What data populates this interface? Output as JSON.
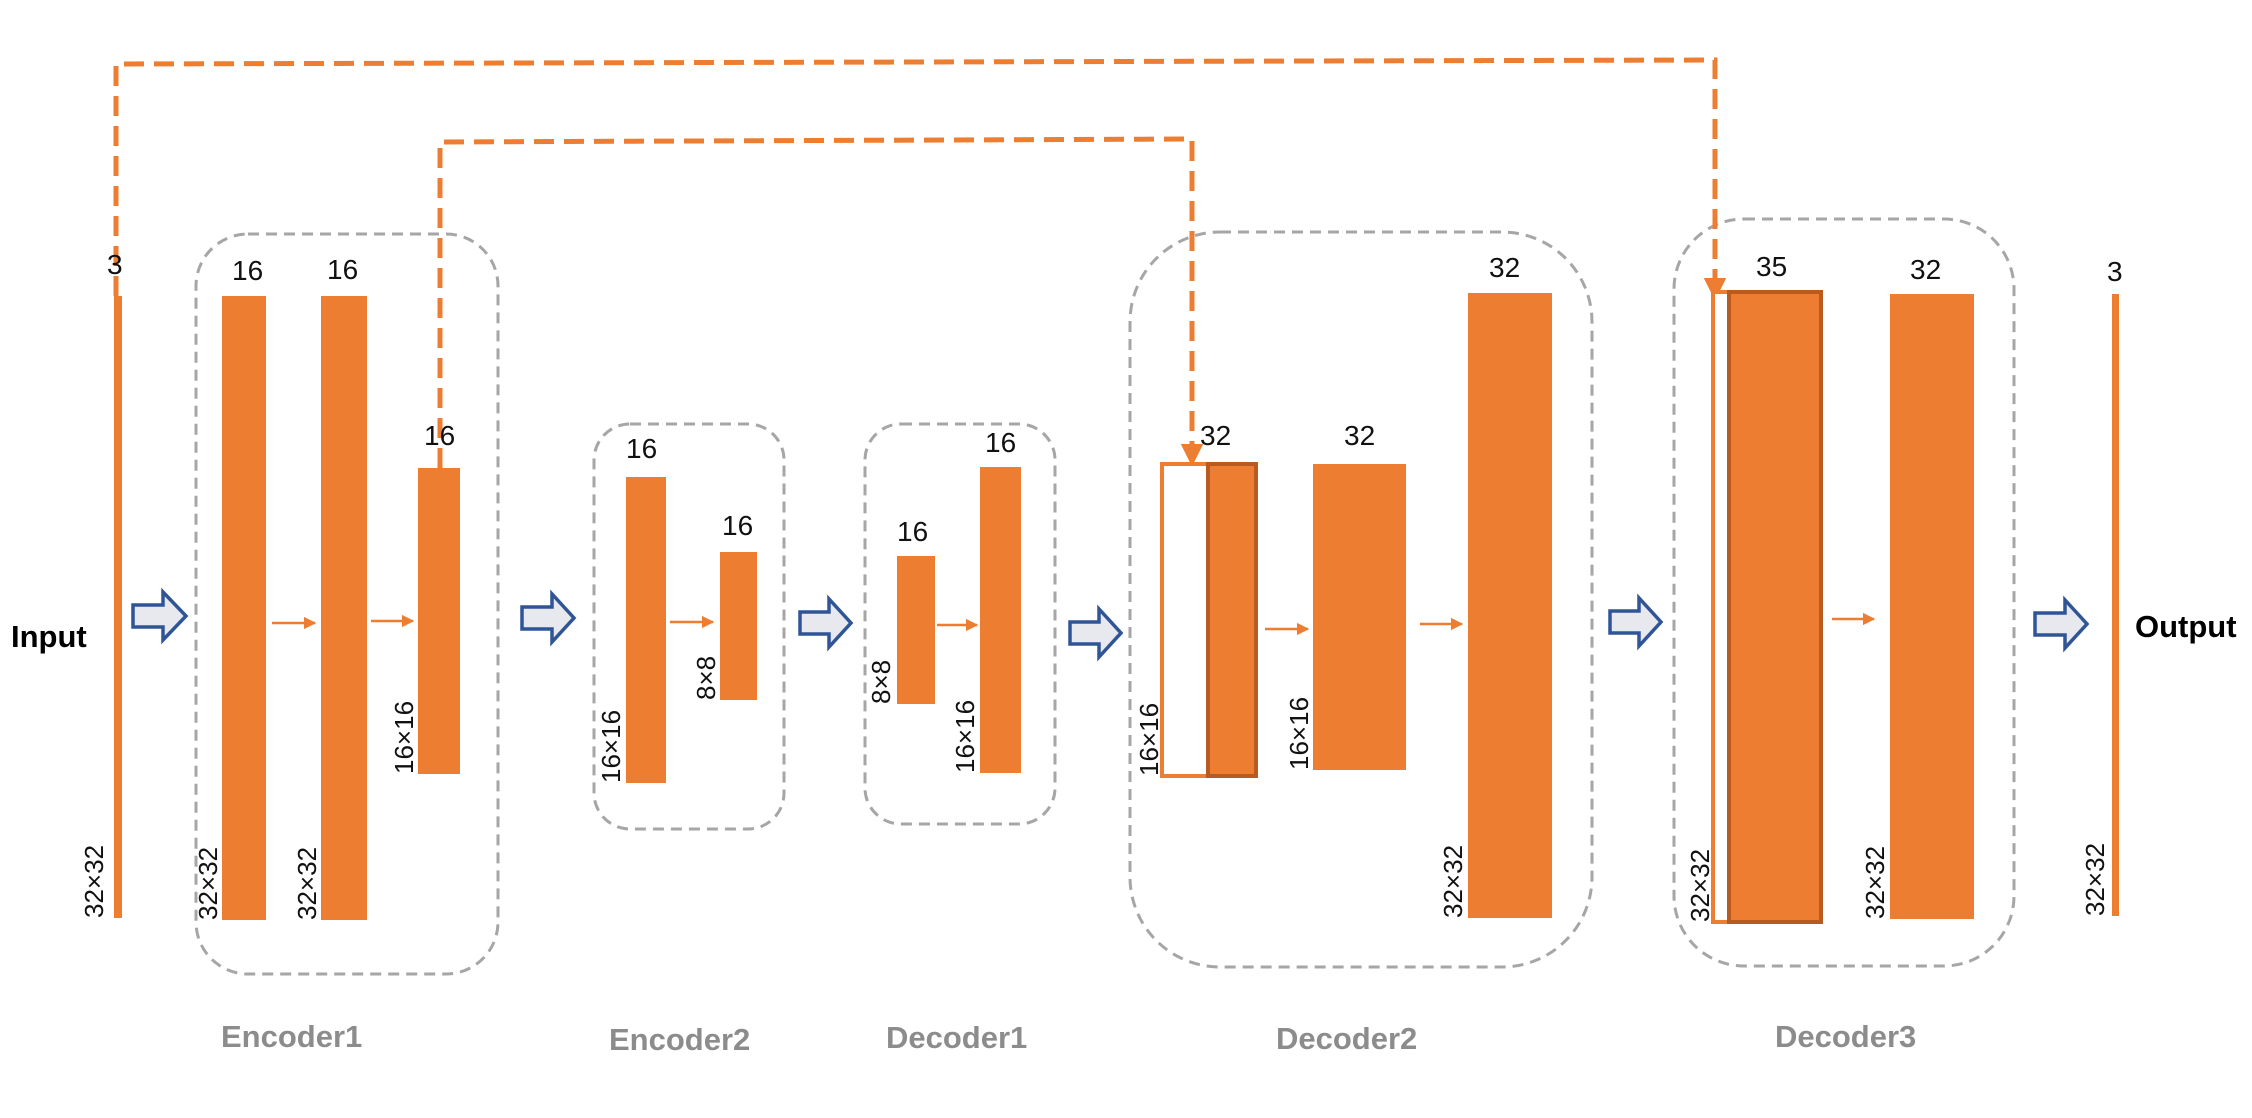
{
  "colors": {
    "feature_map": "#ed7d31",
    "feature_map_border": "#b85b20",
    "skip_connection": "#ed7d31",
    "group_border": "#a6a6a6",
    "flow_arrow_fill": "#e7e9ef",
    "flow_arrow_stroke": "#2f5597",
    "block_label": "#8c8c8c"
  },
  "input_label": "Input",
  "output_label": "Output",
  "input_map": {
    "channels": "3",
    "size": "32×32"
  },
  "output_map": {
    "channels": "3",
    "size": "32×32"
  },
  "blocks": {
    "encoder1": {
      "label": "Encoder1",
      "maps": [
        {
          "channels": "16",
          "size": "32×32"
        },
        {
          "channels": "16",
          "size": "32×32"
        },
        {
          "channels": "16",
          "size": "16×16"
        }
      ]
    },
    "encoder2": {
      "label": "Encoder2",
      "maps": [
        {
          "channels": "16",
          "size": "16×16"
        },
        {
          "channels": "16",
          "size": "8×8"
        }
      ]
    },
    "decoder1": {
      "label": "Decoder1",
      "maps": [
        {
          "channels": "16",
          "size": "8×8"
        },
        {
          "channels": "16",
          "size": "16×16"
        }
      ]
    },
    "decoder2": {
      "label": "Decoder2",
      "maps": [
        {
          "channels": "32",
          "size": "16×16"
        },
        {
          "channels": "32",
          "size": "16×16"
        },
        {
          "channels": "32",
          "size": "32×32"
        }
      ]
    },
    "decoder3": {
      "label": "Decoder3",
      "maps": [
        {
          "channels": "35",
          "size": "32×32"
        },
        {
          "channels": "32",
          "size": "32×32"
        }
      ]
    }
  },
  "skip_connections": [
    {
      "from": "input",
      "to": "decoder3"
    },
    {
      "from": "encoder1",
      "to": "decoder2"
    }
  ]
}
